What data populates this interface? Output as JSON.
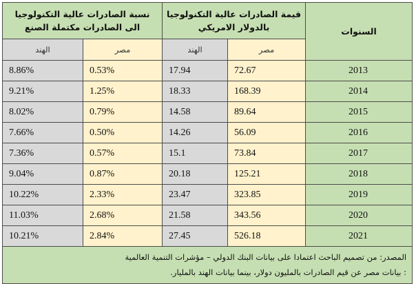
{
  "header": {
    "ratio_title": "نسبة الصادرات عالية التكنولوجيا الى الصادرات مكتملة الصنع",
    "value_title": "قيمة الصادرات عالية التكنولوجيا بالدولار الامريكي",
    "years_title": "السنوات",
    "india": "الهند",
    "egypt": "مصر"
  },
  "rows": [
    {
      "ratio_india": "8.86%",
      "ratio_egypt": "0.53%",
      "value_india": "17.94",
      "value_egypt": "72.67",
      "year": "2013"
    },
    {
      "ratio_india": "9.21%",
      "ratio_egypt": "1.25%",
      "value_india": "18.33",
      "value_egypt": "168.39",
      "year": "2014"
    },
    {
      "ratio_india": "8.02%",
      "ratio_egypt": "0.79%",
      "value_india": "14.58",
      "value_egypt": "89.64",
      "year": "2015"
    },
    {
      "ratio_india": "7.66%",
      "ratio_egypt": "0.50%",
      "value_india": "14.26",
      "value_egypt": "56.09",
      "year": "2016"
    },
    {
      "ratio_india": "7.36%",
      "ratio_egypt": "0.57%",
      "value_india": "15.1",
      "value_egypt": "73.84",
      "year": "2017"
    },
    {
      "ratio_india": "9.04%",
      "ratio_egypt": "0.87%",
      "value_india": "20.18",
      "value_egypt": "125.21",
      "year": "2018"
    },
    {
      "ratio_india": "10.22%",
      "ratio_egypt": "2.33%",
      "value_india": "23.47",
      "value_egypt": "323.85",
      "year": "2019"
    },
    {
      "ratio_india": "11.03%",
      "ratio_egypt": "2.68%",
      "value_india": "21.58",
      "value_egypt": "343.56",
      "year": "2020"
    },
    {
      "ratio_india": "10.21%",
      "ratio_egypt": "2.84%",
      "value_india": "27.45",
      "value_egypt": "526.18",
      "year": "2021"
    }
  ],
  "footer": {
    "source": "المصدر: من تصميم الباحث اعتمادا على بيانات البنك الدولي – مؤشرات التنمية العالمية",
    "note": ": بيانات مصر عن قيم الصادرات بالمليون دولار، بينما بيانات الهند بالمليار."
  },
  "colors": {
    "header_green": "#c6dfb2",
    "india_grey": "#d9d9d9",
    "egypt_yellow": "#fff2cc"
  }
}
